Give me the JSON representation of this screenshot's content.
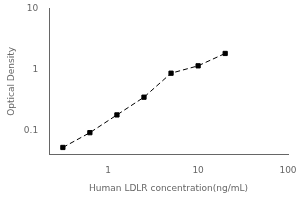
{
  "chart_data": {
    "type": "line",
    "x": [
      0.313,
      0.625,
      1.25,
      2.5,
      5.0,
      10.0,
      20.0
    ],
    "values": [
      0.052,
      0.091,
      0.178,
      0.348,
      0.862,
      1.14,
      1.82
    ],
    "xlabel": "Human LDLR concentration(ng/mL)",
    "ylabel": "Optical Density",
    "xlim": [
      0.22,
      100
    ],
    "ylim": [
      0.04,
      10
    ],
    "xticks": [
      1,
      10,
      100
    ],
    "yticks": [
      0.1,
      1,
      10
    ],
    "log": true,
    "grid": false,
    "color": "black",
    "marker": "square",
    "line_style": "dashed"
  }
}
